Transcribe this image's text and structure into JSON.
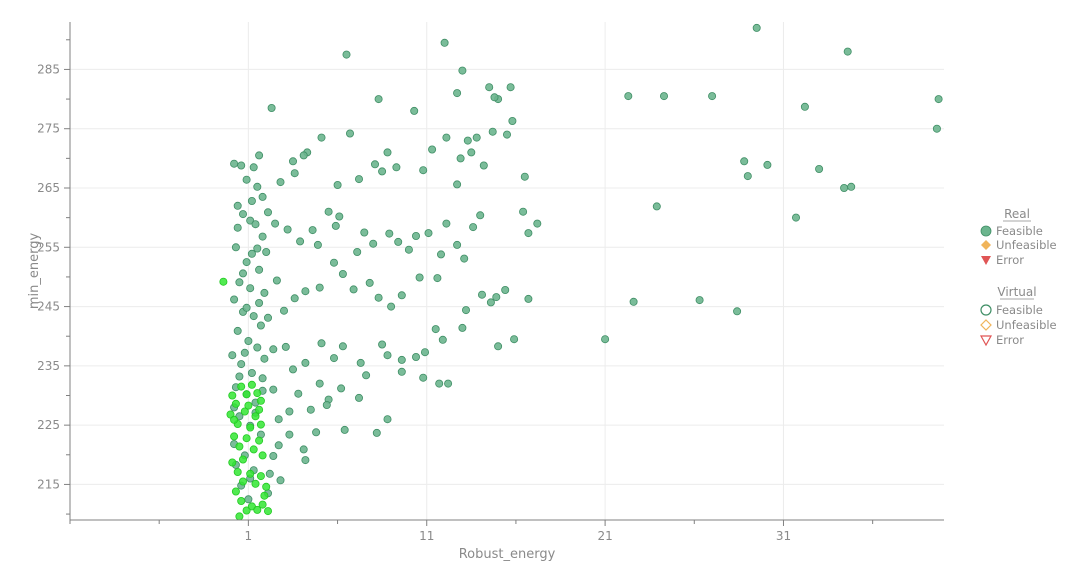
{
  "chart_data": {
    "type": "scatter",
    "xlabel": "Robust_energy",
    "ylabel": "min_energy",
    "xlim": [
      -9,
      40
    ],
    "ylim": [
      209,
      293
    ],
    "x_ticks": [
      1,
      11,
      21,
      31
    ],
    "y_ticks": [
      215,
      225,
      235,
      245,
      255,
      265,
      275,
      285
    ],
    "grid": true,
    "legend_position": "right",
    "colors": {
      "feasible": "#6bb58e",
      "feasible_edge": "#3f8e65",
      "virtual_feasible": "#33e633",
      "unfeasible": "#f0b45a",
      "error": "#e05555",
      "grid": "#ececec",
      "axis": "#808080"
    },
    "legend": {
      "real_title": "Real",
      "virtual_title": "Virtual",
      "feasible": "Feasible",
      "unfeasible": "Unfeasible",
      "error": "Error"
    },
    "series": [
      {
        "name": "Feasible",
        "group": "Real",
        "points": [
          [
            6.5,
            287.5
          ],
          [
            12,
            289.5
          ],
          [
            13,
            284.8
          ],
          [
            14.5,
            282
          ],
          [
            15.7,
            282
          ],
          [
            15,
            280
          ],
          [
            12.7,
            281
          ],
          [
            8.3,
            280
          ],
          [
            10.3,
            278
          ],
          [
            2.3,
            278.5
          ],
          [
            22.3,
            280.5
          ],
          [
            24.3,
            280.5
          ],
          [
            27,
            280.5
          ],
          [
            29.5,
            292
          ],
          [
            34.6,
            288
          ],
          [
            39.7,
            280
          ],
          [
            39.6,
            275
          ],
          [
            32.2,
            278.7
          ],
          [
            15.8,
            276.3
          ],
          [
            15.5,
            274
          ],
          [
            14.8,
            280.3
          ],
          [
            13.3,
            273
          ],
          [
            12.9,
            270
          ],
          [
            12.1,
            273.5
          ],
          [
            11.3,
            271.5
          ],
          [
            10.8,
            268
          ],
          [
            9.3,
            268.5
          ],
          [
            8.8,
            271
          ],
          [
            8.1,
            269
          ],
          [
            8.5,
            267.8
          ],
          [
            7.2,
            266.5
          ],
          [
            6.7,
            274.2
          ],
          [
            6,
            265.5
          ],
          [
            5.1,
            273.5
          ],
          [
            4.3,
            271
          ],
          [
            4.1,
            270.5
          ],
          [
            3.5,
            269.5
          ],
          [
            3.6,
            267.5
          ],
          [
            2.8,
            266
          ],
          [
            13.8,
            273.5
          ],
          [
            13.5,
            271
          ],
          [
            14.2,
            268.8
          ],
          [
            14.7,
            274.5
          ],
          [
            16.5,
            266.9
          ],
          [
            28.8,
            269.5
          ],
          [
            29,
            267
          ],
          [
            30.1,
            268.9
          ],
          [
            33,
            268.2
          ],
          [
            34.4,
            265
          ],
          [
            34.8,
            265.2
          ],
          [
            31.7,
            260
          ],
          [
            23.9,
            261.9
          ],
          [
            16.4,
            261
          ],
          [
            17.2,
            259
          ],
          [
            16.7,
            257.4
          ],
          [
            14,
            260.4
          ],
          [
            13.6,
            258.4
          ],
          [
            12.7,
            265.6
          ],
          [
            12.1,
            259
          ],
          [
            11.1,
            257.4
          ],
          [
            10.4,
            256.9
          ],
          [
            9.4,
            255.9
          ],
          [
            8.9,
            257.3
          ],
          [
            8,
            255.6
          ],
          [
            7.5,
            257.5
          ],
          [
            7.1,
            254.2
          ],
          [
            6.1,
            260.2
          ],
          [
            5.9,
            258.6
          ],
          [
            5.5,
            261
          ],
          [
            4.6,
            257.9
          ],
          [
            4.9,
            255.4
          ],
          [
            3.9,
            256
          ],
          [
            3.2,
            258
          ],
          [
            2.5,
            259
          ],
          [
            2.1,
            260.9
          ],
          [
            12.7,
            255.4
          ],
          [
            13.1,
            253.1
          ],
          [
            11.8,
            253.8
          ],
          [
            11.6,
            249.8
          ],
          [
            10.6,
            249.9
          ],
          [
            10,
            254.6
          ],
          [
            9.6,
            246.9
          ],
          [
            9,
            245
          ],
          [
            8.3,
            246.5
          ],
          [
            7.8,
            249
          ],
          [
            6.9,
            247.9
          ],
          [
            6.3,
            250.5
          ],
          [
            5.8,
            252.4
          ],
          [
            5,
            248.2
          ],
          [
            4.2,
            247.6
          ],
          [
            3.6,
            246.4
          ],
          [
            3,
            244.3
          ],
          [
            2.6,
            249.4
          ],
          [
            13.2,
            244.4
          ],
          [
            13,
            241.4
          ],
          [
            14.1,
            247
          ],
          [
            15.4,
            247.8
          ],
          [
            14.9,
            246.6
          ],
          [
            14.6,
            245.7
          ],
          [
            15.9,
            239.5
          ],
          [
            16.7,
            246.3
          ],
          [
            15,
            238.3
          ],
          [
            21,
            239.5
          ],
          [
            22.6,
            245.8
          ],
          [
            26.3,
            246.1
          ],
          [
            28.4,
            244.2
          ],
          [
            11.5,
            241.2
          ],
          [
            11.9,
            239.4
          ],
          [
            10.9,
            237.3
          ],
          [
            10.4,
            236.5
          ],
          [
            9.6,
            234
          ],
          [
            8.8,
            236.8
          ],
          [
            8.5,
            238.6
          ],
          [
            7.3,
            235.5
          ],
          [
            6.3,
            238.3
          ],
          [
            5.8,
            236.3
          ],
          [
            5.1,
            238.8
          ],
          [
            4.2,
            235.5
          ],
          [
            3.5,
            234.4
          ],
          [
            3.1,
            238.2
          ],
          [
            2.4,
            237.8
          ],
          [
            11.7,
            232
          ],
          [
            12.2,
            232
          ],
          [
            10.8,
            233
          ],
          [
            9.6,
            236
          ],
          [
            7.6,
            233.4
          ],
          [
            7.2,
            229.6
          ],
          [
            6.2,
            231.2
          ],
          [
            5.5,
            229.3
          ],
          [
            5,
            232
          ],
          [
            4.5,
            227.6
          ],
          [
            3.8,
            230.3
          ],
          [
            3.3,
            227.3
          ],
          [
            2.7,
            226
          ],
          [
            2.4,
            231
          ],
          [
            8.8,
            226
          ],
          [
            8.2,
            223.7
          ],
          [
            6.4,
            224.2
          ],
          [
            5.4,
            228.4
          ],
          [
            4.8,
            223.8
          ],
          [
            4.1,
            220.9
          ],
          [
            3.3,
            223.4
          ],
          [
            2.7,
            221.6
          ],
          [
            4.2,
            219.1
          ],
          [
            2.8,
            215.7
          ],
          [
            2.4,
            219.8
          ],
          [
            2.2,
            216.8
          ],
          [
            2.1,
            213.5
          ],
          [
            1.5,
            265.2
          ],
          [
            1.3,
            268.5
          ],
          [
            0.9,
            266.4
          ],
          [
            0.6,
            268.8
          ],
          [
            0.2,
            269.1
          ],
          [
            1.6,
            270.5
          ],
          [
            1.8,
            263.5
          ],
          [
            0.4,
            262
          ],
          [
            0.7,
            260.6
          ],
          [
            1.1,
            259.5
          ],
          [
            1.4,
            258.9
          ],
          [
            1.8,
            256.8
          ],
          [
            2,
            254.2
          ],
          [
            1.2,
            253.9
          ],
          [
            0.3,
            255
          ],
          [
            0.9,
            252.5
          ],
          [
            1.6,
            251.2
          ],
          [
            0.5,
            249.1
          ],
          [
            1.1,
            248.1
          ],
          [
            1.9,
            247.3
          ],
          [
            0.2,
            246.2
          ],
          [
            0.7,
            244.1
          ],
          [
            1.3,
            243.4
          ],
          [
            1.7,
            241.8
          ],
          [
            0.4,
            240.9
          ],
          [
            1,
            239.2
          ],
          [
            1.5,
            238.1
          ],
          [
            0.1,
            236.8
          ],
          [
            0.6,
            235.3
          ],
          [
            1.2,
            233.8
          ],
          [
            1.8,
            232.9
          ],
          [
            0.3,
            231.4
          ],
          [
            0.9,
            230.2
          ],
          [
            1.4,
            228.8
          ],
          [
            0.5,
            226.5
          ],
          [
            1.1,
            224.9
          ],
          [
            1.7,
            223.4
          ],
          [
            0.2,
            221.8
          ],
          [
            0.8,
            219.9
          ],
          [
            1.3,
            217.4
          ],
          [
            0.6,
            214.8
          ],
          [
            1,
            212.5
          ],
          [
            0.4,
            258.3
          ],
          [
            1.6,
            245.6
          ],
          [
            0.8,
            237.2
          ],
          [
            1.4,
            227.1
          ],
          [
            0.3,
            218.3
          ],
          [
            1.9,
            236.2
          ],
          [
            0.7,
            250.6
          ],
          [
            1.2,
            262.8
          ],
          [
            2.1,
            243.1
          ],
          [
            0.5,
            233.2
          ],
          [
            1.8,
            230.8
          ],
          [
            0.9,
            244.8
          ],
          [
            1.5,
            254.8
          ],
          [
            0.2,
            228
          ],
          [
            1.1,
            216
          ]
        ]
      },
      {
        "name": "Feasible",
        "group": "Virtual",
        "points": [
          [
            -0.4,
            249.2
          ],
          [
            0.1,
            230
          ],
          [
            0.3,
            228.6
          ],
          [
            0.6,
            231.5
          ],
          [
            0.9,
            230.2
          ],
          [
            1.2,
            231.8
          ],
          [
            1.5,
            230.4
          ],
          [
            1.7,
            229.1
          ],
          [
            0,
            226.8
          ],
          [
            0.4,
            225.2
          ],
          [
            0.8,
            227.3
          ],
          [
            1.1,
            224.6
          ],
          [
            1.4,
            226.5
          ],
          [
            1.7,
            225.1
          ],
          [
            0.2,
            223.1
          ],
          [
            0.5,
            221.4
          ],
          [
            0.9,
            222.8
          ],
          [
            1.3,
            220.9
          ],
          [
            1.6,
            222.4
          ],
          [
            1.8,
            219.9
          ],
          [
            0.1,
            218.7
          ],
          [
            0.4,
            217.1
          ],
          [
            0.7,
            215.5
          ],
          [
            1.1,
            216.8
          ],
          [
            1.4,
            215.1
          ],
          [
            1.7,
            216.4
          ],
          [
            2,
            214.6
          ],
          [
            0.3,
            213.8
          ],
          [
            0.6,
            212.2
          ],
          [
            0.9,
            210.6
          ],
          [
            1.2,
            211.3
          ],
          [
            1.5,
            210.7
          ],
          [
            1.8,
            211.6
          ],
          [
            2.1,
            210.5
          ],
          [
            0.5,
            209.6
          ],
          [
            0.2,
            225.9
          ],
          [
            1,
            228.3
          ],
          [
            1.6,
            227.6
          ],
          [
            0.7,
            219.2
          ],
          [
            1.9,
            213.1
          ]
        ]
      }
    ]
  }
}
